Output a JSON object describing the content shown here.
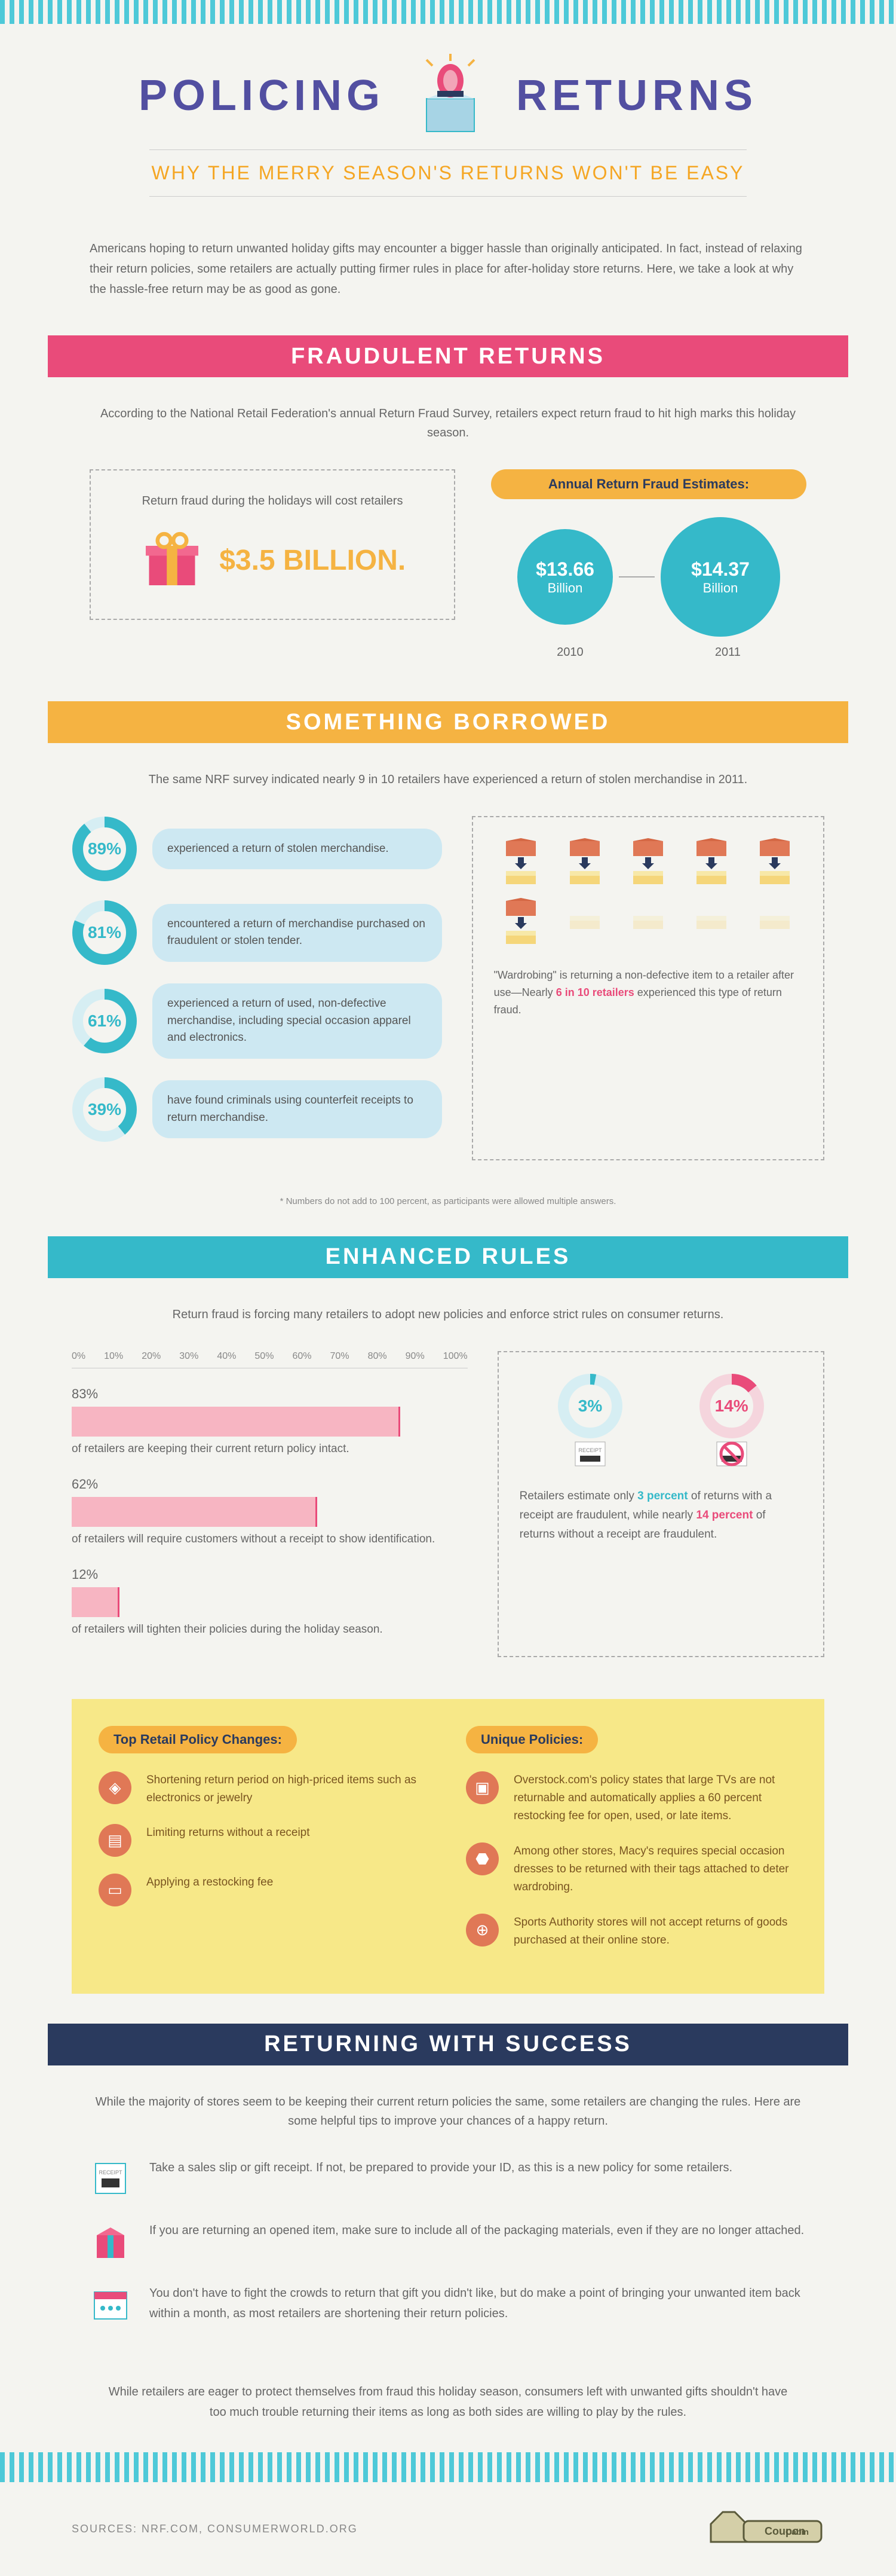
{
  "header": {
    "title_left": "POLICING",
    "title_right": "RETURNS",
    "subtitle": "WHY THE MERRY SEASON'S RETURNS WON'T BE EASY",
    "intro": "Americans hoping to return unwanted holiday gifts may encounter a bigger hassle than originally anticipated. In fact, instead of relaxing their return policies, some retailers are actually putting firmer rules in place for after-holiday store returns. Here, we take a look at why the hassle-free return may be as good as gone."
  },
  "fraud": {
    "heading": "FRAUDULENT RETURNS",
    "text": "According to the National Retail Federation's annual Return Fraud Survey, retailers expect return fraud to hit high marks this holiday season.",
    "box_title": "Return fraud during the holidays will cost retailers",
    "amount": "$3.5 BILLION.",
    "chart_title": "Annual Return Fraud Estimates:",
    "bubble1_val": "$13.66",
    "bubble1_unit": "Billion",
    "bubble2_val": "$14.37",
    "bubble2_unit": "Billion",
    "year1": "2010",
    "year2": "2011"
  },
  "borrowed": {
    "heading": "SOMETHING BORROWED",
    "text": "The same NRF survey indicated nearly 9 in 10 retailers have experienced a return of stolen merchandise in 2011.",
    "stats": [
      {
        "pct": "89%",
        "text": "experienced a return of stolen merchandise.",
        "val": 89
      },
      {
        "pct": "81%",
        "text": "encountered a return of merchandise purchased on fraudulent or stolen tender.",
        "val": 81
      },
      {
        "pct": "61%",
        "text": "experienced a return of used, non-defective merchandise, including special occasion apparel and electronics.",
        "val": 61
      },
      {
        "pct": "39%",
        "text": "have found criminals using counterfeit receipts to return merchandise.",
        "val": 39
      }
    ],
    "wardrobe_text": "\"Wardrobing\" is returning a non-defective item to a retailer after use—Nearly ",
    "wardrobe_hl": "6 in 10 retailers",
    "wardrobe_text2": " experienced this type of return fraud.",
    "footnote": "* Numbers do not add to 100 percent, as participants were allowed multiple answers."
  },
  "rules": {
    "heading": "ENHANCED RULES",
    "text": "Return fraud is forcing many retailers to adopt new policies and enforce strict rules on consumer returns.",
    "axis": [
      "0%",
      "10%",
      "20%",
      "30%",
      "40%",
      "50%",
      "60%",
      "70%",
      "80%",
      "90%",
      "100%"
    ],
    "bars": [
      {
        "pct": "83%",
        "width": 83,
        "desc": "of retailers are keeping their current return policy intact."
      },
      {
        "pct": "62%",
        "width": 62,
        "desc": "of retailers will require customers without a receipt to show identification."
      },
      {
        "pct": "12%",
        "width": 12,
        "desc": "of retailers will tighten their policies during the holiday season."
      }
    ],
    "receipt": {
      "pct1": "3%",
      "val1": 3,
      "pct2": "14%",
      "val2": 14,
      "text1": "Retailers estimate only ",
      "hl1": "3 percent",
      "text2": " of returns with a receipt are fraudulent, while nearly ",
      "hl2": "14 percent",
      "text3": " of returns without a receipt are fraudulent."
    }
  },
  "policies": {
    "h1": "Top Retail Policy Changes:",
    "h2": "Unique Policies:",
    "left": [
      "Shortening return period on high-priced items such as electronics or jewelry",
      "Limiting returns without a receipt",
      "Applying a restocking fee"
    ],
    "right": [
      "Overstock.com's policy states that large TVs are not returnable and automatically applies a 60 percent restocking fee for open, used, or late items.",
      "Among other stores, Macy's requires special occasion dresses to be returned with their tags attached to deter wardrobing.",
      "Sports Authority stores will not accept returns of goods purchased at their online store."
    ],
    "icons_left": [
      "◈",
      "▤",
      "▭"
    ],
    "icons_right": [
      "▣",
      "⬣",
      "⊕"
    ]
  },
  "success": {
    "heading": "RETURNING WITH SUCCESS",
    "text": "While the majority of stores seem to be keeping their current return policies the same, some retailers are changing the rules. Here are some helpful tips to improve your chances of a happy return.",
    "items": [
      "Take a sales slip or gift receipt. If not, be prepared to provide your ID, as this is a new policy for some retailers.",
      "If you are returning an opened item, make sure to include all of the packaging materials, even if they are no longer attached.",
      "You don't have to fight the crowds to return that gift you didn't like, but do make a point of bringing your unwanted item back within a month, as most retailers are shortening their return policies."
    ],
    "closing": "While retailers are eager to protect themselves from fraud this holiday season, consumers left with unwanted gifts shouldn't have too much trouble returning their items as long as both sides are willing to play by the rules."
  },
  "footer": {
    "sources": "SOURCES: NRF.COM, CONSUMERWORLD.ORG",
    "logo": "CouponCabin.com"
  }
}
